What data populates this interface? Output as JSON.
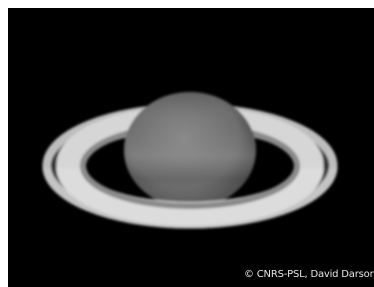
{
  "credit": "© CNRS-PSL, David Darson"
}
